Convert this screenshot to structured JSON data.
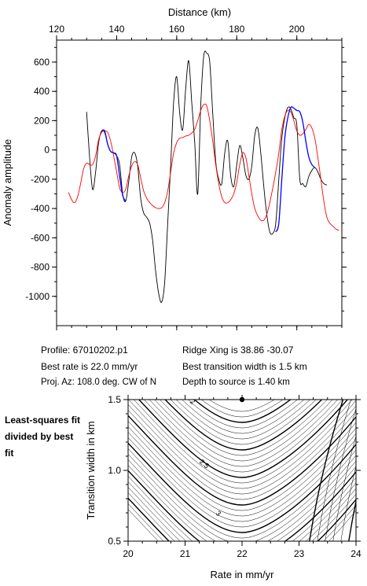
{
  "chart_data": [
    {
      "type": "line",
      "xlabel_top": "Distance (km)",
      "ylabel": "Anomaly amplitude",
      "xlim": [
        120,
        215
      ],
      "ylim": [
        -1200,
        750
      ],
      "xticks": [
        120,
        140,
        160,
        180,
        200
      ],
      "yticks": [
        600,
        400,
        200,
        0,
        -200,
        -400,
        -600,
        -800,
        -1000
      ],
      "series": [
        {
          "color": "#000000",
          "x": [
            130,
            131,
            132,
            133,
            134,
            135,
            136,
            137,
            138,
            139,
            140,
            141,
            142,
            143,
            144,
            145,
            146,
            147,
            148,
            149,
            150,
            151,
            152,
            153,
            154,
            155,
            156,
            157,
            158,
            159,
            160,
            161,
            162,
            163,
            164,
            165,
            166,
            167,
            168,
            169,
            170,
            171,
            172,
            173,
            174,
            175,
            176,
            177,
            178,
            179,
            180,
            181,
            182,
            183,
            184,
            185,
            186,
            187,
            188,
            189,
            190,
            191,
            192,
            193,
            194,
            195,
            196,
            197,
            198,
            199,
            200,
            201,
            202,
            203,
            204,
            205,
            206,
            207,
            208,
            209,
            210
          ],
          "y": [
            260,
            -50,
            -270,
            -150,
            50,
            130,
            120,
            40,
            -10,
            -20,
            -40,
            -100,
            -300,
            -350,
            -220,
            -50,
            -20,
            -110,
            -330,
            -430,
            -460,
            -500,
            -620,
            -830,
            -980,
            -1040,
            -900,
            -500,
            -100,
            330,
            500,
            250,
            140,
            420,
            610,
            330,
            50,
            -300,
            300,
            640,
            660,
            600,
            250,
            -80,
            -200,
            -230,
            -20,
            60,
            -180,
            -250,
            -100,
            30,
            -50,
            -170,
            -200,
            -110,
            100,
            150,
            -20,
            -250,
            -440,
            -560,
            -570,
            -500,
            -200,
            80,
            220,
            290,
            280,
            220,
            170,
            -200,
            -230,
            -250,
            -180,
            -140,
            -120,
            -150,
            -200,
            -230,
            -240
          ]
        },
        {
          "color": "#ff0000",
          "x": [
            124,
            125,
            126,
            127,
            128,
            129,
            130,
            131,
            132,
            133,
            134,
            135,
            136,
            137,
            138,
            139,
            140,
            141,
            142,
            143,
            144,
            145,
            146,
            147,
            148,
            149,
            150,
            151,
            152,
            153,
            154,
            155,
            156,
            157,
            158,
            159,
            160,
            161,
            162,
            163,
            164,
            165,
            166,
            167,
            168,
            169,
            170,
            171,
            172,
            173,
            174,
            175,
            176,
            177,
            178,
            179,
            180,
            181,
            182,
            183,
            184,
            185,
            186,
            187,
            188,
            189,
            190,
            191,
            192,
            193,
            194,
            195,
            196,
            197,
            198,
            199,
            200,
            201,
            202,
            203,
            204,
            205,
            206,
            207,
            208,
            209,
            210,
            211,
            212,
            213,
            214
          ],
          "y": [
            -290,
            -340,
            -360,
            -320,
            -230,
            -130,
            -90,
            -100,
            -100,
            -40,
            70,
            120,
            130,
            120,
            60,
            -40,
            -150,
            -260,
            -290,
            -270,
            -180,
            -110,
            -80,
            -100,
            -190,
            -280,
            -330,
            -360,
            -380,
            -395,
            -400,
            -395,
            -360,
            -280,
            -150,
            -20,
            50,
            80,
            85,
            95,
            100,
            115,
            140,
            200,
            270,
            310,
            300,
            200,
            60,
            -100,
            -230,
            -320,
            -360,
            -360,
            -340,
            -300,
            -220,
            -100,
            -20,
            -50,
            -170,
            -300,
            -400,
            -450,
            -480,
            -480,
            -440,
            -360,
            -260,
            -150,
            -20,
            140,
            230,
            270,
            260,
            200,
            130,
            100,
            110,
            140,
            175,
            150,
            80,
            -50,
            -200,
            -350,
            -460,
            -500,
            -520,
            -540,
            -550
          ]
        },
        {
          "color": "#0000ff",
          "x": [
            135,
            136,
            137,
            138,
            139,
            140,
            141,
            142,
            143
          ],
          "y": [
            130,
            130,
            40,
            -10,
            -20,
            -40,
            -180,
            -310,
            -350
          ]
        },
        {
          "color": "#0000ff",
          "x": [
            193,
            194,
            195,
            196,
            197,
            198,
            199,
            200,
            201,
            202,
            203,
            204,
            205,
            206
          ],
          "y": [
            -560,
            -500,
            -200,
            80,
            220,
            290,
            285,
            270,
            260,
            190,
            60,
            -50,
            -100,
            -120
          ]
        }
      ]
    },
    {
      "type": "contour",
      "xlabel": "Rate in mm/yr",
      "ylabel": "Transition width in km",
      "xlim": [
        20,
        24
      ],
      "ylim": [
        0.5,
        1.5
      ],
      "xticks": [
        20,
        21,
        22,
        23,
        24
      ],
      "yticks": [
        1.5,
        1.0,
        0.5
      ],
      "contour_labels": [
        "2",
        "2.5",
        "3"
      ],
      "best_fit": {
        "rate": 22.0,
        "width": 1.5
      }
    }
  ],
  "info": {
    "profile": "Profile: 67010202.p1",
    "best_rate": "Best rate is 22.0 mm/yr",
    "proj_az": "Proj. Az: 108.0 deg. CW of N",
    "ridge_xing": "Ridge Xing is 38.86 -30.07",
    "best_transition": "Best transition width is 1.5 km",
    "depth": "Depth to source is    1.40 km"
  },
  "side_note": "Least-squares fit divided by best fit"
}
